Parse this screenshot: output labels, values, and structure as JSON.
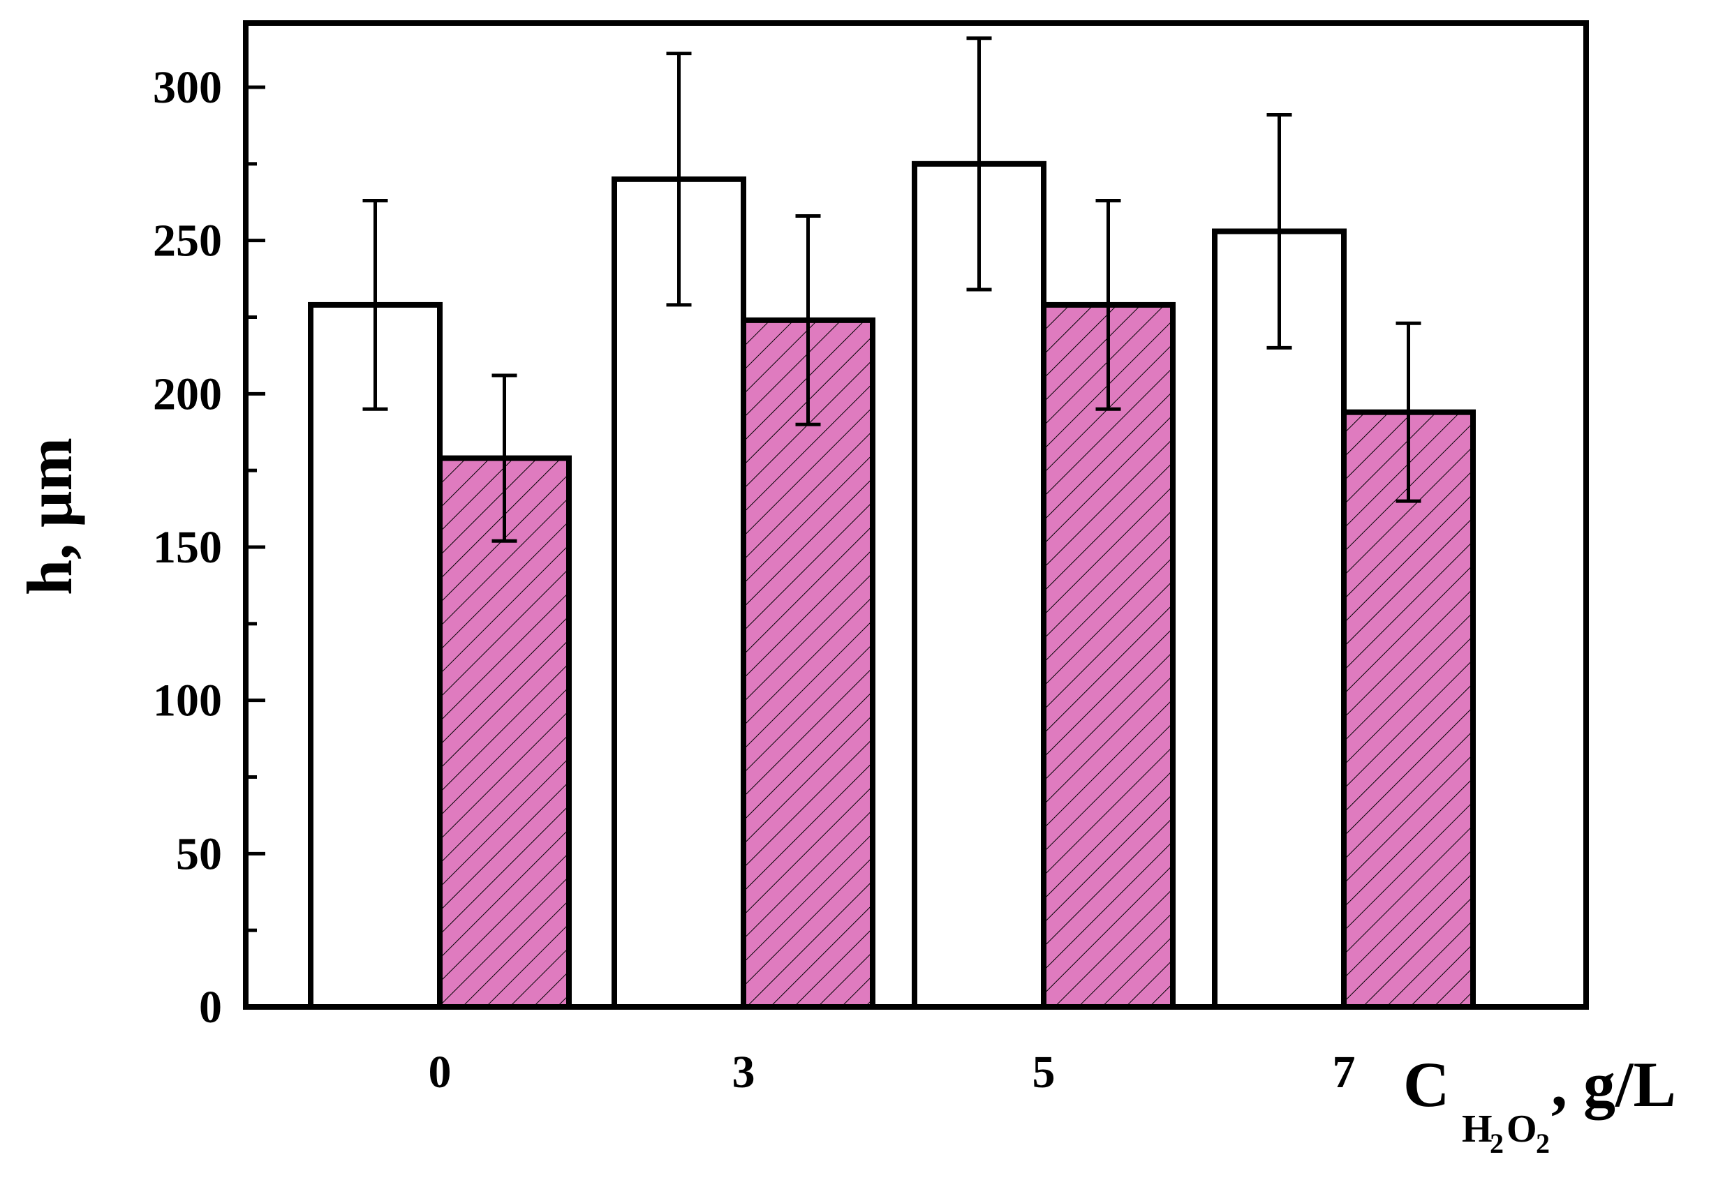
{
  "chart_data": {
    "type": "bar",
    "categories": [
      "0",
      "3",
      "5",
      "7"
    ],
    "series": [
      {
        "fill": "#ffffff",
        "hatch": false,
        "values": [
          229,
          270,
          275,
          253
        ],
        "errors": [
          34,
          41,
          41,
          38
        ]
      },
      {
        "fill": "#df7bbf",
        "hatch": true,
        "values": [
          179,
          224,
          229,
          194
        ],
        "errors": [
          27,
          34,
          34,
          29
        ]
      }
    ],
    "yticks": [
      "0",
      "50",
      "100",
      "150",
      "200",
      "250",
      "300"
    ],
    "ylim": [
      0,
      300
    ],
    "grid": false,
    "legend": "none",
    "xlabel": {
      "main": "C",
      "sub1": "H",
      "sub1_digit": "2",
      "sub2": "O",
      "sub2_digit": "2",
      "tail": ", g/L"
    },
    "ylabel": "h, μm"
  }
}
